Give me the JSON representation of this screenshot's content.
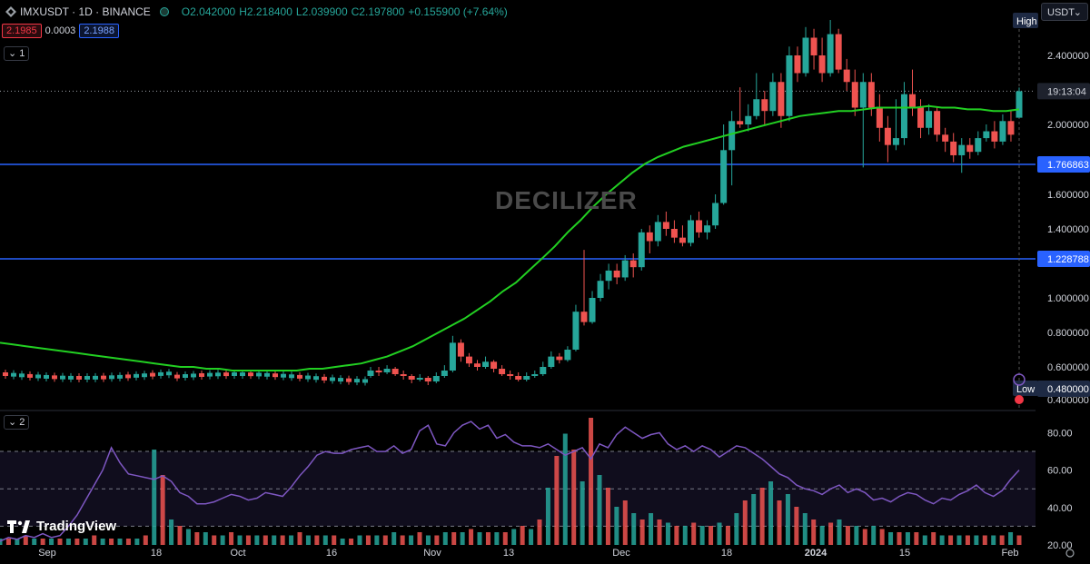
{
  "header": {
    "symbol_line": "IMXUSDT · 1D · BINANCE",
    "open": "O2.042000",
    "high": "H2.218400",
    "low": "L2.039900",
    "close": "C2.197800",
    "change": "+0.155900 (+7.64%)",
    "bid": "2.1985",
    "spread": "0.0003",
    "ask": "2.1988",
    "pane1_toggle": "1",
    "pane2_toggle": "2",
    "currency": "USDT",
    "currency_chevron": "⌄"
  },
  "watermark": "DECILIZER",
  "brand": {
    "name": "TradingView"
  },
  "colors": {
    "up": "#26a69a",
    "down": "#ef5350",
    "ma": "#22d022",
    "hline": "#2962ff",
    "rsi": "#7e57c2",
    "background": "#000000"
  },
  "chart_data": [
    {
      "type": "candlestick",
      "ylim": [
        0.4,
        2.6
      ],
      "y_ticks": [
        "2.400000",
        "2.000000",
        "1.600000",
        "1.400000",
        "1.000000",
        "0.800000",
        "0.600000",
        "0.400000"
      ],
      "x_labels": [
        "Sep",
        "18",
        "Oct",
        "16",
        "Nov",
        "13",
        "Dec",
        "18",
        "2024",
        "15",
        "Feb"
      ],
      "horizontal_lines": [
        {
          "value": 1.766863,
          "label": "1.766863"
        },
        {
          "value": 1.228788,
          "label": "1.228788"
        }
      ],
      "current_price": {
        "value": 2.1978,
        "label": "19:13:04"
      },
      "high_marker": {
        "label": "High"
      },
      "low_marker": {
        "label": "Low",
        "value": "0.480000"
      },
      "moving_average": [
        0.74,
        0.73,
        0.72,
        0.71,
        0.7,
        0.69,
        0.68,
        0.67,
        0.66,
        0.65,
        0.64,
        0.63,
        0.62,
        0.61,
        0.6,
        0.6,
        0.59,
        0.59,
        0.58,
        0.58,
        0.58,
        0.58,
        0.58,
        0.58,
        0.59,
        0.59,
        0.6,
        0.61,
        0.62,
        0.64,
        0.66,
        0.69,
        0.72,
        0.76,
        0.8,
        0.84,
        0.88,
        0.93,
        0.98,
        1.04,
        1.09,
        1.16,
        1.23,
        1.3,
        1.38,
        1.45,
        1.53,
        1.6,
        1.66,
        1.72,
        1.77,
        1.81,
        1.84,
        1.87,
        1.89,
        1.91,
        1.93,
        1.95,
        1.97,
        1.99,
        2.01,
        2.03,
        2.05,
        2.06,
        2.07,
        2.08,
        2.08,
        2.09,
        2.1,
        2.1,
        2.1,
        2.1,
        2.11,
        2.1,
        2.1,
        2.09,
        2.09,
        2.08,
        2.08,
        2.09
      ],
      "candles": [
        [
          0.55,
          0.58,
          0.6,
          0.54
        ],
        [
          0.58,
          0.57,
          0.6,
          0.55
        ],
        [
          0.57,
          0.59,
          0.61,
          0.56
        ],
        [
          0.59,
          0.56,
          0.6,
          0.55
        ],
        [
          0.56,
          0.55,
          0.58,
          0.53
        ],
        [
          0.55,
          0.53,
          0.56,
          0.51
        ],
        [
          0.53,
          0.54,
          0.56,
          0.52
        ],
        [
          0.54,
          0.52,
          0.55,
          0.5
        ],
        [
          0.52,
          0.55,
          0.57,
          0.51
        ],
        [
          0.55,
          0.58,
          0.61,
          0.54
        ],
        [
          0.58,
          0.74,
          0.78,
          0.57
        ],
        [
          0.74,
          0.66,
          0.76,
          0.63
        ],
        [
          0.66,
          0.62,
          0.68,
          0.6
        ],
        [
          0.62,
          0.6,
          0.64,
          0.58
        ],
        [
          0.6,
          0.63,
          0.66,
          0.59
        ],
        [
          0.63,
          0.59,
          0.64,
          0.57
        ],
        [
          0.59,
          0.56,
          0.61,
          0.55
        ],
        [
          0.56,
          0.55,
          0.58,
          0.53
        ],
        [
          0.55,
          0.53,
          0.57,
          0.52
        ],
        [
          0.53,
          0.55,
          0.57,
          0.52
        ],
        [
          0.55,
          0.56,
          0.58,
          0.54
        ],
        [
          0.56,
          0.6,
          0.63,
          0.55
        ],
        [
          0.6,
          0.66,
          0.69,
          0.59
        ],
        [
          0.66,
          0.64,
          0.68,
          0.62
        ],
        [
          0.64,
          0.7,
          0.72,
          0.63
        ],
        [
          0.7,
          0.92,
          0.96,
          0.69
        ],
        [
          0.92,
          0.86,
          1.28,
          0.84
        ],
        [
          0.86,
          1.0,
          1.04,
          0.85
        ],
        [
          1.0,
          1.1,
          1.14,
          0.98
        ],
        [
          1.1,
          1.16,
          1.2,
          1.05
        ],
        [
          1.16,
          1.12,
          1.2,
          1.08
        ],
        [
          1.12,
          1.22,
          1.25,
          1.1
        ],
        [
          1.22,
          1.18,
          1.26,
          1.12
        ],
        [
          1.18,
          1.38,
          1.4,
          1.16
        ],
        [
          1.38,
          1.33,
          1.42,
          1.26
        ],
        [
          1.33,
          1.44,
          1.48,
          1.3
        ],
        [
          1.44,
          1.4,
          1.5,
          1.36
        ],
        [
          1.4,
          1.35,
          1.45,
          1.32
        ],
        [
          1.35,
          1.32,
          1.42,
          1.3
        ],
        [
          1.32,
          1.45,
          1.48,
          1.3
        ],
        [
          1.45,
          1.38,
          1.5,
          1.35
        ],
        [
          1.38,
          1.42,
          1.45,
          1.34
        ],
        [
          1.42,
          1.55,
          1.6,
          1.4
        ],
        [
          1.55,
          1.85,
          2.0,
          1.54
        ],
        [
          1.85,
          2.02,
          2.08,
          1.65
        ],
        [
          2.02,
          2.0,
          2.22,
          1.98
        ],
        [
          2.0,
          2.05,
          2.12,
          1.96
        ],
        [
          2.05,
          2.15,
          2.3,
          2.03
        ],
        [
          2.15,
          2.08,
          2.2,
          2.0
        ],
        [
          2.08,
          2.25,
          2.3,
          2.05
        ],
        [
          2.25,
          2.05,
          2.3,
          1.98
        ],
        [
          2.05,
          2.4,
          2.45,
          2.02
        ],
        [
          2.4,
          2.3,
          2.45,
          2.25
        ],
        [
          2.3,
          2.5,
          2.56,
          2.28
        ],
        [
          2.5,
          2.4,
          2.55,
          2.32
        ],
        [
          2.4,
          2.3,
          2.5,
          2.25
        ],
        [
          2.3,
          2.52,
          2.6,
          2.28
        ],
        [
          2.52,
          2.32,
          2.55,
          2.3
        ],
        [
          2.32,
          2.25,
          2.38,
          2.2
        ],
        [
          2.25,
          2.1,
          2.32,
          2.05
        ],
        [
          2.1,
          2.25,
          2.3,
          1.75
        ],
        [
          2.25,
          2.1,
          2.3,
          2.05
        ],
        [
          2.1,
          1.98,
          2.18,
          1.9
        ],
        [
          1.98,
          1.88,
          2.05,
          1.78
        ],
        [
          1.88,
          1.92,
          2.15,
          1.85
        ],
        [
          1.92,
          2.18,
          2.25,
          1.88
        ],
        [
          2.18,
          2.1,
          2.32,
          2.05
        ],
        [
          2.1,
          1.98,
          2.15,
          1.92
        ],
        [
          1.98,
          2.08,
          2.12,
          1.94
        ],
        [
          2.08,
          1.94,
          2.1,
          1.9
        ],
        [
          1.94,
          1.9,
          1.98,
          1.84
        ],
        [
          1.9,
          1.82,
          1.95,
          1.78
        ],
        [
          1.82,
          1.88,
          1.92,
          1.72
        ],
        [
          1.88,
          1.84,
          1.92,
          1.8
        ],
        [
          1.84,
          1.92,
          1.96,
          1.82
        ],
        [
          1.92,
          1.96,
          2.0,
          1.9
        ],
        [
          1.96,
          1.9,
          2.02,
          1.86
        ],
        [
          1.9,
          2.02,
          2.06,
          1.88
        ],
        [
          2.02,
          1.94,
          2.08,
          1.9
        ],
        [
          2.04,
          2.1978,
          2.2184,
          2.0399
        ]
      ]
    },
    {
      "type": "volume_rsi",
      "rsi_ylim": [
        20,
        88
      ],
      "rsi_ticks": [
        "80.00",
        "60.00",
        "40.00",
        "20.00"
      ],
      "rsi_bands": [
        70,
        50,
        30
      ],
      "rsi": [
        22,
        24,
        23,
        25,
        24,
        26,
        24,
        25,
        30,
        36,
        44,
        52,
        60,
        72,
        64,
        58,
        57,
        56,
        55,
        57,
        54,
        48,
        46,
        42,
        42,
        43,
        45,
        47,
        46,
        44,
        45,
        48,
        47,
        46,
        51,
        57,
        62,
        68,
        70,
        69,
        69,
        71,
        72,
        73,
        70,
        70,
        73,
        69,
        71,
        81,
        84,
        74,
        73,
        80,
        84,
        86,
        82,
        84,
        77,
        79,
        75,
        73,
        73,
        72,
        74,
        71,
        68,
        70,
        72,
        66,
        74,
        72,
        79,
        83,
        80,
        77,
        79,
        80,
        74,
        71,
        73,
        70,
        73,
        71,
        67,
        70,
        73,
        72,
        69,
        66,
        62,
        58,
        56,
        52,
        50,
        49,
        47,
        50,
        52,
        48,
        50,
        48,
        44,
        45,
        43,
        46,
        48,
        47,
        44,
        42,
        45,
        44,
        47,
        49,
        52,
        48,
        46,
        49,
        55,
        60
      ],
      "volume": [
        2,
        2,
        2,
        3,
        2,
        2,
        2,
        2,
        2,
        2,
        2,
        3,
        2,
        2,
        2,
        2,
        2,
        3,
        30,
        22,
        8,
        6,
        5,
        4,
        4,
        3,
        3,
        4,
        3,
        3,
        3,
        3,
        3,
        3,
        3,
        4,
        3,
        3,
        3,
        3,
        2,
        2,
        3,
        3,
        3,
        3,
        4,
        3,
        3,
        4,
        3,
        3,
        4,
        4,
        4,
        5,
        4,
        4,
        4,
        4,
        5,
        6,
        5,
        8,
        18,
        28,
        35,
        30,
        20,
        40,
        22,
        18,
        12,
        14,
        10,
        8,
        10,
        8,
        7,
        6,
        6,
        7,
        6,
        6,
        7,
        6,
        10,
        14,
        16,
        18,
        20,
        14,
        16,
        12,
        10,
        8,
        6,
        7,
        8,
        6,
        6,
        5,
        6,
        5,
        4,
        4,
        4,
        4,
        3,
        4,
        3,
        3,
        3,
        3,
        3,
        3,
        3,
        3,
        4,
        3
      ]
    }
  ]
}
